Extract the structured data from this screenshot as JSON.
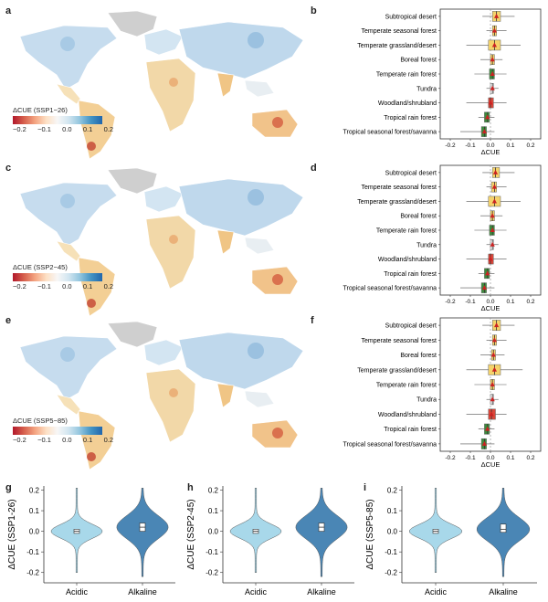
{
  "panel_labels": [
    "a",
    "b",
    "c",
    "d",
    "e",
    "f",
    "g",
    "h",
    "i"
  ],
  "maps": [
    {
      "legend_title": "ΔCUE (SSP1−26)",
      "ticks": [
        "−0.2",
        "−0.1",
        "0.0",
        "0.1",
        "0.2"
      ]
    },
    {
      "legend_title": "ΔCUE (SSP2−45)",
      "ticks": [
        "−0.2",
        "−0.1",
        "0.0",
        "0.1",
        "0.2"
      ]
    },
    {
      "legend_title": "ΔCUE (SSP5−85)",
      "ticks": [
        "−0.2",
        "−0.1",
        "0.0",
        "0.1",
        "0.2"
      ]
    }
  ],
  "colors": {
    "yellow": "#f5d36b",
    "green": "#3d8b3d",
    "red": "#d9483b",
    "light": "#f3f3f3",
    "median": "#cc2222",
    "violin_light": "#a8d8ea",
    "violin_dark": "#4a86b5"
  },
  "chart_data": [
    {
      "type": "box",
      "xlabel": "ΔCUE",
      "xlim": [
        -0.25,
        0.25
      ],
      "xticks": [
        -0.2,
        -0.1,
        0.0,
        0.1,
        0.2
      ],
      "categories": [
        "Subtropical desert",
        "Temperate seasonal forest",
        "Temperate grassland/desert",
        "Boreal forest",
        "Temperate rain forest",
        "Tundra",
        "Woodland/shrubland",
        "Tropical rain forest",
        "Tropical seasonal forest/savanna"
      ],
      "boxes": [
        {
          "q1": 0.01,
          "median": 0.03,
          "q3": 0.05,
          "min": -0.04,
          "max": 0.12,
          "fill": "yellow"
        },
        {
          "q1": 0.01,
          "median": 0.02,
          "q3": 0.03,
          "min": -0.02,
          "max": 0.08,
          "fill": "yellow"
        },
        {
          "q1": -0.01,
          "median": 0.02,
          "q3": 0.05,
          "min": -0.12,
          "max": 0.15,
          "fill": "yellow"
        },
        {
          "q1": 0.0,
          "median": 0.01,
          "q3": 0.02,
          "min": -0.05,
          "max": 0.06,
          "fill": "yellow"
        },
        {
          "q1": -0.005,
          "median": 0.01,
          "q3": 0.02,
          "min": -0.08,
          "max": 0.08,
          "fill": "green"
        },
        {
          "q1": 0.0,
          "median": 0.01,
          "q3": 0.015,
          "min": -0.02,
          "max": 0.04,
          "fill": "light"
        },
        {
          "q1": -0.01,
          "median": 0.0,
          "q3": 0.015,
          "min": -0.12,
          "max": 0.08,
          "fill": "red"
        },
        {
          "q1": -0.03,
          "median": -0.015,
          "q3": -0.005,
          "min": -0.06,
          "max": 0.02,
          "fill": "green"
        },
        {
          "q1": -0.045,
          "median": -0.03,
          "q3": -0.02,
          "min": -0.15,
          "max": 0.02,
          "fill": "green"
        }
      ]
    },
    {
      "type": "box",
      "xlabel": "ΔCUE",
      "xlim": [
        -0.25,
        0.25
      ],
      "xticks": [
        -0.2,
        -0.1,
        0.0,
        0.1,
        0.2
      ],
      "categories": [
        "Subtropical desert",
        "Temperate seasonal forest",
        "Temperate grassland/desert",
        "Boreal forest",
        "Temperate rain forest",
        "Tundra",
        "Woodland/shrubland",
        "Tropical rain forest",
        "Tropical seasonal forest/savanna"
      ],
      "boxes": [
        {
          "q1": 0.01,
          "median": 0.025,
          "q3": 0.045,
          "min": -0.04,
          "max": 0.12,
          "fill": "yellow"
        },
        {
          "q1": 0.005,
          "median": 0.02,
          "q3": 0.03,
          "min": -0.02,
          "max": 0.08,
          "fill": "yellow"
        },
        {
          "q1": -0.01,
          "median": 0.02,
          "q3": 0.05,
          "min": -0.12,
          "max": 0.15,
          "fill": "yellow"
        },
        {
          "q1": 0.0,
          "median": 0.01,
          "q3": 0.02,
          "min": -0.05,
          "max": 0.06,
          "fill": "yellow"
        },
        {
          "q1": -0.005,
          "median": 0.01,
          "q3": 0.02,
          "min": -0.08,
          "max": 0.08,
          "fill": "green"
        },
        {
          "q1": 0.0,
          "median": 0.01,
          "q3": 0.015,
          "min": -0.02,
          "max": 0.04,
          "fill": "light"
        },
        {
          "q1": -0.01,
          "median": 0.0,
          "q3": 0.015,
          "min": -0.12,
          "max": 0.08,
          "fill": "red"
        },
        {
          "q1": -0.03,
          "median": -0.015,
          "q3": -0.005,
          "min": -0.06,
          "max": 0.02,
          "fill": "green"
        },
        {
          "q1": -0.045,
          "median": -0.03,
          "q3": -0.02,
          "min": -0.15,
          "max": 0.02,
          "fill": "green"
        }
      ]
    },
    {
      "type": "box",
      "xlabel": "ΔCUE",
      "xlim": [
        -0.25,
        0.25
      ],
      "xticks": [
        -0.2,
        -0.1,
        0.0,
        0.1,
        0.2
      ],
      "categories": [
        "Subtropical desert",
        "Temperate seasonal forest",
        "Boreal forest",
        "Temperate grassland/desert",
        "Temperate rain forest",
        "Tundra",
        "Woodland/shrubland",
        "Tropical rain forest",
        "Tropical seasonal forest/savanna"
      ],
      "boxes": [
        {
          "q1": 0.01,
          "median": 0.03,
          "q3": 0.05,
          "min": -0.04,
          "max": 0.12,
          "fill": "yellow"
        },
        {
          "q1": 0.01,
          "median": 0.02,
          "q3": 0.03,
          "min": -0.02,
          "max": 0.08,
          "fill": "yellow"
        },
        {
          "q1": 0.005,
          "median": 0.015,
          "q3": 0.025,
          "min": -0.05,
          "max": 0.07,
          "fill": "yellow"
        },
        {
          "q1": -0.01,
          "median": 0.02,
          "q3": 0.05,
          "min": -0.12,
          "max": 0.16,
          "fill": "yellow"
        },
        {
          "q1": 0.0,
          "median": 0.01,
          "q3": 0.02,
          "min": -0.08,
          "max": 0.08,
          "fill": "yellow"
        },
        {
          "q1": 0.0,
          "median": 0.01,
          "q3": 0.015,
          "min": -0.02,
          "max": 0.04,
          "fill": "light"
        },
        {
          "q1": -0.01,
          "median": 0.005,
          "q3": 0.025,
          "min": -0.12,
          "max": 0.08,
          "fill": "red"
        },
        {
          "q1": -0.03,
          "median": -0.015,
          "q3": -0.005,
          "min": -0.06,
          "max": 0.02,
          "fill": "green"
        },
        {
          "q1": -0.045,
          "median": -0.03,
          "q3": -0.02,
          "min": -0.15,
          "max": 0.02,
          "fill": "green"
        }
      ]
    },
    {
      "type": "violin",
      "ylabel": "ΔCUE (SSP1-26)",
      "ylim": [
        -0.25,
        0.22
      ],
      "yticks": [
        -0.2,
        -0.1,
        0.0,
        0.1,
        0.2
      ],
      "categories": [
        "Acidic",
        "Alkaline"
      ],
      "series": [
        {
          "q1": -0.01,
          "median": 0.0,
          "q3": 0.01,
          "min": -0.2,
          "max": 0.21,
          "fill": "violin_light"
        },
        {
          "q1": 0.0,
          "median": 0.02,
          "q3": 0.04,
          "min": -0.22,
          "max": 0.21,
          "fill": "violin_dark"
        }
      ]
    },
    {
      "type": "violin",
      "ylabel": "ΔCUE (SSP2-45)",
      "ylim": [
        -0.25,
        0.22
      ],
      "yticks": [
        -0.2,
        -0.1,
        0.0,
        0.1,
        0.2
      ],
      "categories": [
        "Acidic",
        "Alkaline"
      ],
      "series": [
        {
          "q1": -0.01,
          "median": 0.0,
          "q3": 0.01,
          "min": -0.2,
          "max": 0.21,
          "fill": "violin_light"
        },
        {
          "q1": 0.0,
          "median": 0.02,
          "q3": 0.04,
          "min": -0.22,
          "max": 0.21,
          "fill": "violin_dark"
        }
      ]
    },
    {
      "type": "violin",
      "ylabel": "ΔCUE (SSP5-85)",
      "ylim": [
        -0.25,
        0.22
      ],
      "yticks": [
        -0.2,
        -0.1,
        0.0,
        0.1,
        0.2
      ],
      "categories": [
        "Acidic",
        "Alkaline"
      ],
      "series": [
        {
          "q1": -0.01,
          "median": 0.0,
          "q3": 0.01,
          "min": -0.2,
          "max": 0.21,
          "fill": "violin_light"
        },
        {
          "q1": -0.005,
          "median": 0.01,
          "q3": 0.035,
          "min": -0.22,
          "max": 0.21,
          "fill": "violin_dark"
        }
      ]
    }
  ]
}
